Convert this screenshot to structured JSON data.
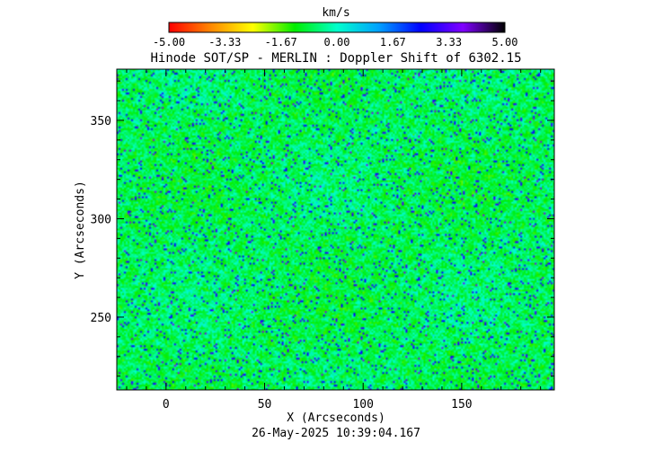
{
  "title": "Hinode SOT/SP - MERLIN : Doppler Shift of 6302.15",
  "timestamp": "26-May-2025 10:39:04.167",
  "colorbar": {
    "unit": "km/s",
    "tick_labels": [
      "-5.00",
      "-3.33",
      "-1.67",
      "0.00",
      "1.67",
      "3.33",
      "5.00"
    ],
    "colormap": [
      "#ff0000",
      "#ff8800",
      "#ffff00",
      "#00ee00",
      "#00ffcc",
      "#00a0ff",
      "#0000ff",
      "#8000ff",
      "#000000"
    ]
  },
  "chart_data": {
    "type": "heatmap",
    "title": "Hinode SOT/SP - MERLIN : Doppler Shift of 6302.15",
    "xlabel": "X (Arcseconds)",
    "ylabel": "Y (Arcseconds)",
    "xlim": [
      -25,
      197
    ],
    "ylim": [
      213,
      376
    ],
    "x_ticks": [
      0,
      50,
      100,
      150
    ],
    "y_ticks": [
      250,
      300,
      350
    ],
    "value_range": [
      -5.0,
      5.0
    ],
    "value_unit": "km/s"
  }
}
